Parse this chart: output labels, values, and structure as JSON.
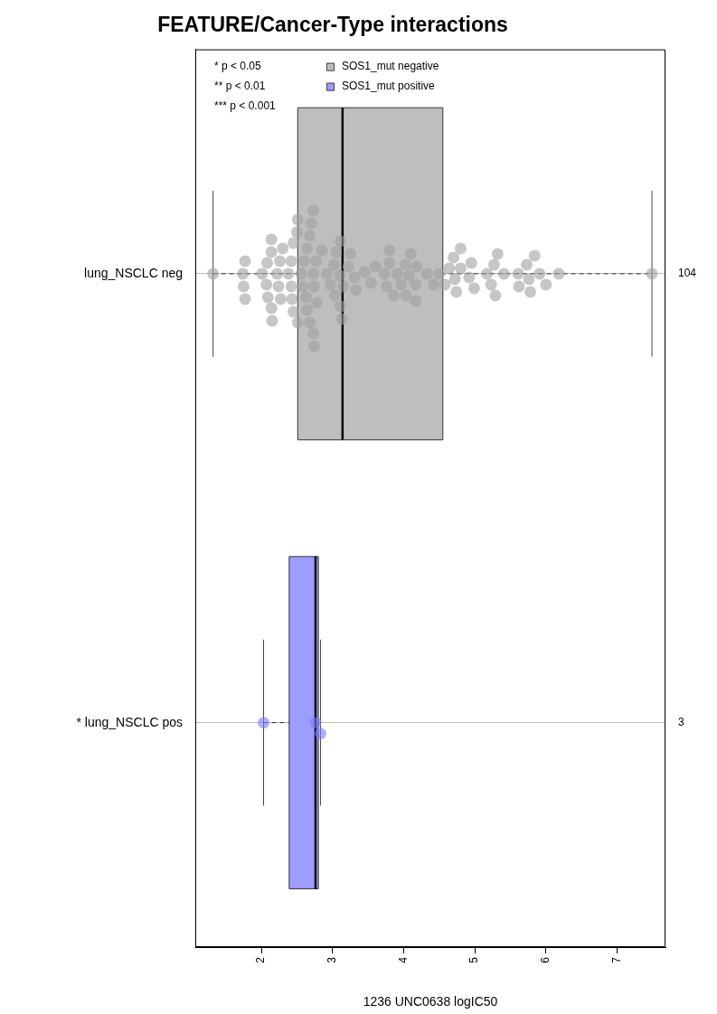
{
  "chart_data": {
    "type": "box",
    "orientation": "horizontal",
    "title": "FEATURE/Cancer-Type interactions",
    "xlabel": "1236 UNC0638 logIC50",
    "categories": [
      "lung_NSCLC neg",
      "* lung_NSCLC pos"
    ],
    "xlim": [
      1.07,
      7.68
    ],
    "xticks": [
      2,
      3,
      4,
      5,
      6,
      7
    ],
    "grid": "y",
    "legend": "top left",
    "series": [
      {
        "name": "SOS1_mut negative",
        "color": "#bebebe",
        "boxes": [
          {
            "low": 1.32,
            "q1": 2.51,
            "median": 3.14,
            "q3": 4.55,
            "high": 7.49
          },
          null
        ]
      },
      {
        "name": "SOS1_mut positive",
        "color": "#9d9dff",
        "boxes": [
          null,
          {
            "low": 2.03,
            "q1": 2.39,
            "median": 2.76,
            "q3": 2.8,
            "high": 2.83
          }
        ]
      },
      {
        "type": "scatter",
        "color": "#a0a0a0",
        "x": [
          "lung_NSCLC neg",
          "lung_NSCLC neg",
          "lung_NSCLC neg",
          "lung_NSCLC neg",
          "lung_NSCLC neg",
          "lung_NSCLC neg",
          "lung_NSCLC neg",
          "lung_NSCLC neg",
          "lung_NSCLC neg",
          "lung_NSCLC neg",
          "lung_NSCLC neg",
          "lung_NSCLC neg",
          "lung_NSCLC neg",
          "lung_NSCLC neg",
          "lung_NSCLC neg",
          "lung_NSCLC neg",
          "lung_NSCLC neg",
          "lung_NSCLC neg",
          "lung_NSCLC neg",
          "lung_NSCLC neg",
          "lung_NSCLC neg",
          "lung_NSCLC neg",
          "lung_NSCLC neg",
          "lung_NSCLC neg",
          "lung_NSCLC neg",
          "lung_NSCLC neg",
          "lung_NSCLC neg",
          "lung_NSCLC neg",
          "lung_NSCLC neg",
          "lung_NSCLC neg",
          "lung_NSCLC neg",
          "lung_NSCLC neg",
          "lung_NSCLC neg",
          "lung_NSCLC neg",
          "lung_NSCLC neg",
          "lung_NSCLC neg",
          "lung_NSCLC neg",
          "lung_NSCLC neg",
          "lung_NSCLC neg",
          "lung_NSCLC neg",
          "lung_NSCLC neg",
          "lung_NSCLC neg",
          "lung_NSCLC neg",
          "lung_NSCLC neg",
          "lung_NSCLC neg",
          "lung_NSCLC neg",
          "lung_NSCLC neg",
          "lung_NSCLC neg",
          "lung_NSCLC neg",
          "lung_NSCLC neg",
          "lung_NSCLC neg",
          "lung_NSCLC neg",
          "lung_NSCLC neg",
          "lung_NSCLC neg",
          "lung_NSCLC neg",
          "lung_NSCLC neg",
          "lung_NSCLC neg",
          "lung_NSCLC neg",
          "lung_NSCLC neg",
          "lung_NSCLC neg",
          "lung_NSCLC neg",
          "lung_NSCLC neg",
          "lung_NSCLC neg",
          "lung_NSCLC neg",
          "lung_NSCLC neg",
          "lung_NSCLC neg",
          "lung_NSCLC neg",
          "lung_NSCLC neg",
          "lung_NSCLC neg",
          "lung_NSCLC neg",
          "lung_NSCLC neg",
          "lung_NSCLC neg",
          "lung_NSCLC neg",
          "lung_NSCLC neg",
          "lung_NSCLC neg",
          "lung_NSCLC neg",
          "lung_NSCLC neg",
          "lung_NSCLC neg",
          "lung_NSCLC neg",
          "lung_NSCLC neg",
          "lung_NSCLC neg",
          "lung_NSCLC neg",
          "lung_NSCLC neg",
          "lung_NSCLC neg",
          "lung_NSCLC neg",
          "lung_NSCLC neg",
          "lung_NSCLC neg",
          "lung_NSCLC neg",
          "lung_NSCLC neg",
          "lung_NSCLC neg",
          "lung_NSCLC neg",
          "lung_NSCLC neg",
          "lung_NSCLC neg",
          "lung_NSCLC neg",
          "lung_NSCLC neg",
          "lung_NSCLC neg",
          "lung_NSCLC neg",
          "lung_NSCLC neg",
          "lung_NSCLC neg",
          "lung_NSCLC neg",
          "lung_NSCLC neg",
          "lung_NSCLC neg",
          "lung_NSCLC neg",
          "lung_NSCLC neg"
        ],
        "values": [
          1.32,
          1.74,
          1.75,
          1.77,
          1.77,
          2.01,
          2.07,
          2.08,
          2.09,
          2.14,
          2.14,
          2.14,
          2.15,
          2.22,
          2.24,
          2.26,
          2.27,
          2.3,
          2.38,
          2.42,
          2.42,
          2.43,
          2.45,
          2.45,
          2.5,
          2.51,
          2.51,
          2.56,
          2.58,
          2.6,
          2.63,
          2.64,
          2.64,
          2.68,
          2.68,
          2.7,
          2.73,
          2.73,
          2.73,
          2.74,
          2.74,
          2.77,
          2.78,
          2.85,
          2.92,
          2.97,
          3.02,
          3.03,
          3.05,
          3.1,
          3.11,
          3.11,
          3.13,
          3.15,
          3.22,
          3.25,
          3.31,
          3.33,
          3.45,
          3.54,
          3.6,
          3.73,
          3.76,
          3.8,
          3.8,
          3.86,
          3.91,
          3.96,
          4.02,
          4.03,
          4.07,
          4.1,
          4.17,
          4.17,
          4.18,
          4.33,
          4.42,
          4.5,
          4.58,
          4.64,
          4.7,
          4.72,
          4.74,
          4.8,
          4.8,
          4.92,
          4.95,
          4.99,
          5.17,
          5.23,
          5.27,
          5.29,
          5.32,
          5.41,
          5.61,
          5.62,
          5.73,
          5.76,
          5.78,
          5.84,
          5.91,
          6.0,
          6.18,
          7.49
        ]
      },
      {
        "type": "scatter",
        "color": "#7b7bff",
        "x": [
          "* lung_NSCLC pos",
          "* lung_NSCLC pos",
          "* lung_NSCLC pos"
        ],
        "values": [
          2.03,
          2.76,
          2.83
        ]
      }
    ],
    "annotations": [
      "* p < 0.05",
      "** p < 0.01",
      "*** p < 0.001",
      "104",
      "3"
    ]
  }
}
